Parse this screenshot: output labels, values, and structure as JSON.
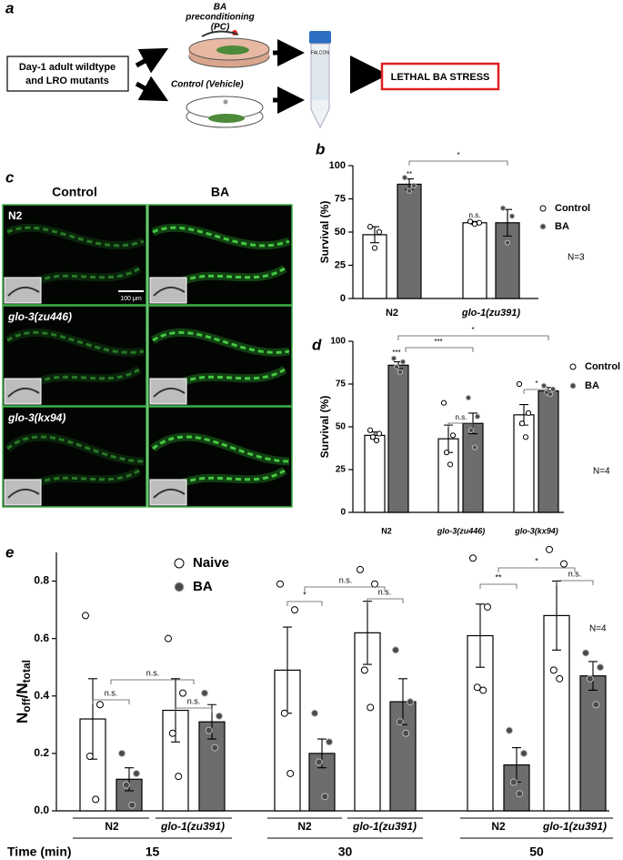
{
  "panel_a": {
    "label": "a",
    "input": [
      "Day-1 adult wildtype",
      "and LRO mutants"
    ],
    "pc": [
      "BA",
      "preconditioning",
      "(PC)"
    ],
    "control": "Control (Vehicle)",
    "tube": "FALCON",
    "outcome": "LETHAL BA STRESS"
  },
  "panel_c": {
    "label": "c",
    "columns": [
      "Control",
      "BA"
    ],
    "rows": [
      "N2",
      "glo-3(zu446)",
      "glo-3(kx94)"
    ],
    "scale_bar": "100 μm"
  },
  "chart_data": [
    {
      "type": "bar",
      "panel": "b",
      "ylabel": "Survival (%)",
      "categories": [
        "N2",
        "glo-1(zu391)"
      ],
      "ylim": [
        0,
        100
      ],
      "yticks": [
        0,
        25,
        50,
        75,
        100
      ],
      "series": [
        {
          "name": "Control",
          "color": "#ffffff",
          "point_color": "#ffffff",
          "values": [
            48,
            57
          ],
          "errors": [
            6,
            1
          ],
          "points": [
            [
              54,
              50,
              38
            ],
            [
              58,
              57,
              56
            ]
          ]
        },
        {
          "name": "BA",
          "color": "#6d6d6d",
          "point_color": "#4a4a4a",
          "values": [
            86,
            57
          ],
          "errors": [
            4,
            10
          ],
          "points": [
            [
              91,
              85,
              81
            ],
            [
              68,
              62,
              42
            ]
          ]
        }
      ],
      "annotations": [
        "**",
        "n.s.",
        "*"
      ],
      "note": "N=3"
    },
    {
      "type": "bar",
      "panel": "d",
      "ylabel": "Survival (%)",
      "categories": [
        "N2",
        "glo-3(zu446)",
        "glo-3(kx94)"
      ],
      "ylim": [
        0,
        100
      ],
      "yticks": [
        0,
        25,
        50,
        75,
        100
      ],
      "series": [
        {
          "name": "Control",
          "color": "#ffffff",
          "point_color": "#ffffff",
          "values": [
            45,
            43,
            57
          ],
          "errors": [
            2,
            8,
            6
          ],
          "points": [
            [
              48,
              46,
              44,
              42
            ],
            [
              64,
              45,
              35,
              28
            ],
            [
              75,
              58,
              52,
              44
            ]
          ]
        },
        {
          "name": "BA",
          "color": "#6d6d6d",
          "point_color": "#4a4a4a",
          "values": [
            86,
            52,
            71
          ],
          "errors": [
            2,
            6,
            2
          ],
          "points": [
            [
              90,
              88,
              85,
              82
            ],
            [
              67,
              56,
              48,
              38
            ],
            [
              74,
              72,
              70,
              69
            ]
          ]
        }
      ],
      "annotations": [
        "***",
        "***",
        "n.s.",
        "*",
        "*"
      ],
      "note": "N=4"
    },
    {
      "type": "bar",
      "panel": "e",
      "ylabel": [
        "N",
        "off",
        "/N",
        "total"
      ],
      "categories": [
        "N2",
        "glo-1(zu391)",
        "N2",
        "glo-1(zu391)",
        "N2",
        "glo-1(zu391)"
      ],
      "time_label": "Time (min)",
      "times": [
        "15",
        "30",
        "50"
      ],
      "ylim": [
        0,
        0.9
      ],
      "yticks": [
        {
          "value": 0,
          "label": "0.0"
        },
        0.2,
        0.4,
        0.6,
        0.8
      ],
      "series": [
        {
          "name": "Naive",
          "color": "#ffffff",
          "point_color": "#ffffff",
          "values": [
            0.32,
            0.35,
            0.49,
            0.62,
            0.61,
            0.68
          ],
          "errors": [
            0.14,
            0.11,
            0.15,
            0.11,
            0.11,
            0.12
          ],
          "points": [
            [
              0.68,
              0.37,
              0.19,
              0.04
            ],
            [
              0.6,
              0.41,
              0.27,
              0.12
            ],
            [
              0.79,
              0.7,
              0.34,
              0.13
            ],
            [
              0.84,
              0.79,
              0.49,
              0.36
            ],
            [
              0.88,
              0.71,
              0.43,
              0.42
            ],
            [
              0.91,
              0.86,
              0.49,
              0.46
            ]
          ]
        },
        {
          "name": "BA",
          "color": "#6d6d6d",
          "point_color": "#4a4a4a",
          "values": [
            0.11,
            0.31,
            0.2,
            0.38,
            0.16,
            0.47
          ],
          "errors": [
            0.04,
            0.06,
            0.05,
            0.08,
            0.06,
            0.05
          ],
          "points": [
            [
              0.2,
              0.13,
              0.09,
              0.02
            ],
            [
              0.41,
              0.33,
              0.28,
              0.22
            ],
            [
              0.34,
              0.24,
              0.17,
              0.05
            ],
            [
              0.56,
              0.38,
              0.31,
              0.27
            ],
            [
              0.28,
              0.2,
              0.1,
              0.06
            ],
            [
              0.55,
              0.5,
              0.46,
              0.37
            ]
          ]
        }
      ],
      "annotations": [
        "n.s.",
        "n.s.",
        "n.s.",
        "*",
        "n.s.",
        "n.s.",
        "**",
        "*",
        "n.s."
      ],
      "note": "N=4"
    }
  ]
}
